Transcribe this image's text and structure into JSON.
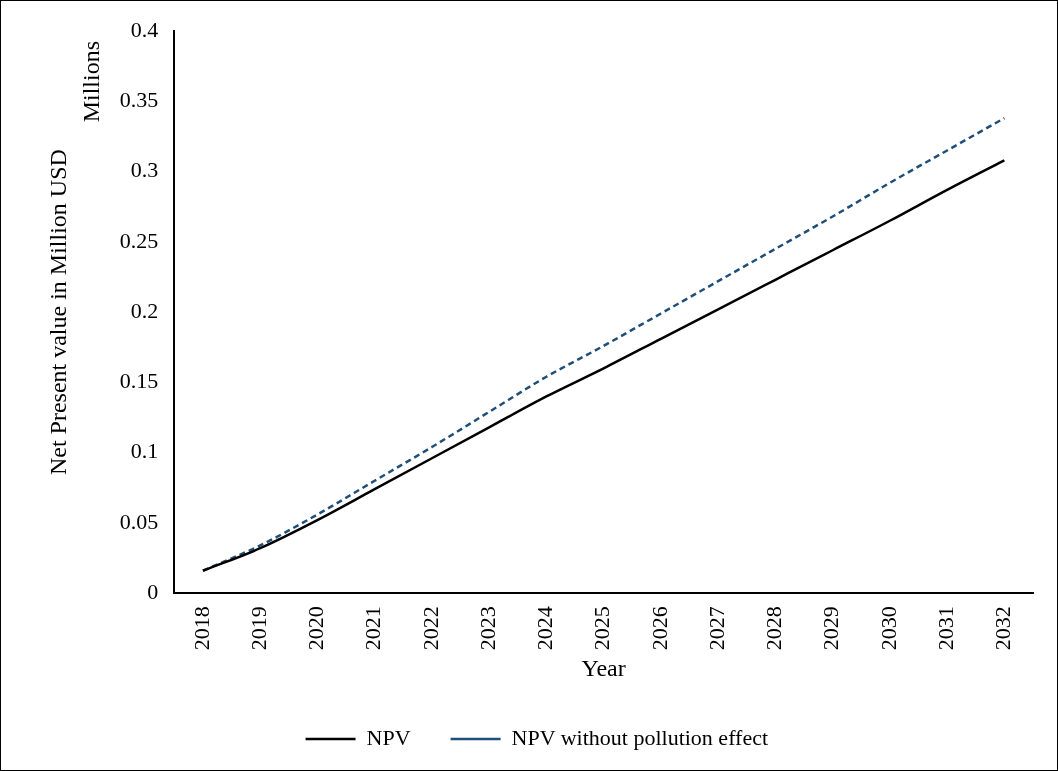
{
  "chart_data": {
    "type": "line",
    "xlabel": "Year",
    "ylabel": "Net Present value in Million USD",
    "annotations": [
      "Millions"
    ],
    "categories": [
      "2018",
      "2019",
      "2020",
      "2021",
      "2022",
      "2023",
      "2024",
      "2025",
      "2026",
      "2027",
      "2028",
      "2029",
      "2030",
      "2031",
      "2032"
    ],
    "series": [
      {
        "name": "NPV",
        "color": "#000000",
        "line_style": "solid",
        "values": [
          0.016,
          0.032,
          0.052,
          0.074,
          0.096,
          0.118,
          0.14,
          0.16,
          0.181,
          0.202,
          0.223,
          0.244,
          0.265,
          0.287,
          0.308
        ]
      },
      {
        "name": "NPV without pollution effect",
        "color": "#1f4e79",
        "line_style": "dashed",
        "values": [
          0.016,
          0.034,
          0.056,
          0.08,
          0.104,
          0.129,
          0.154,
          0.176,
          0.199,
          0.222,
          0.245,
          0.268,
          0.292,
          0.315,
          0.338
        ]
      }
    ],
    "ylim": [
      0,
      0.4
    ],
    "yticks": [
      0,
      0.05,
      0.1,
      0.15,
      0.2,
      0.25,
      0.3,
      0.35,
      0.4
    ],
    "grid": false,
    "legend": "bottom",
    "marker": "none"
  }
}
